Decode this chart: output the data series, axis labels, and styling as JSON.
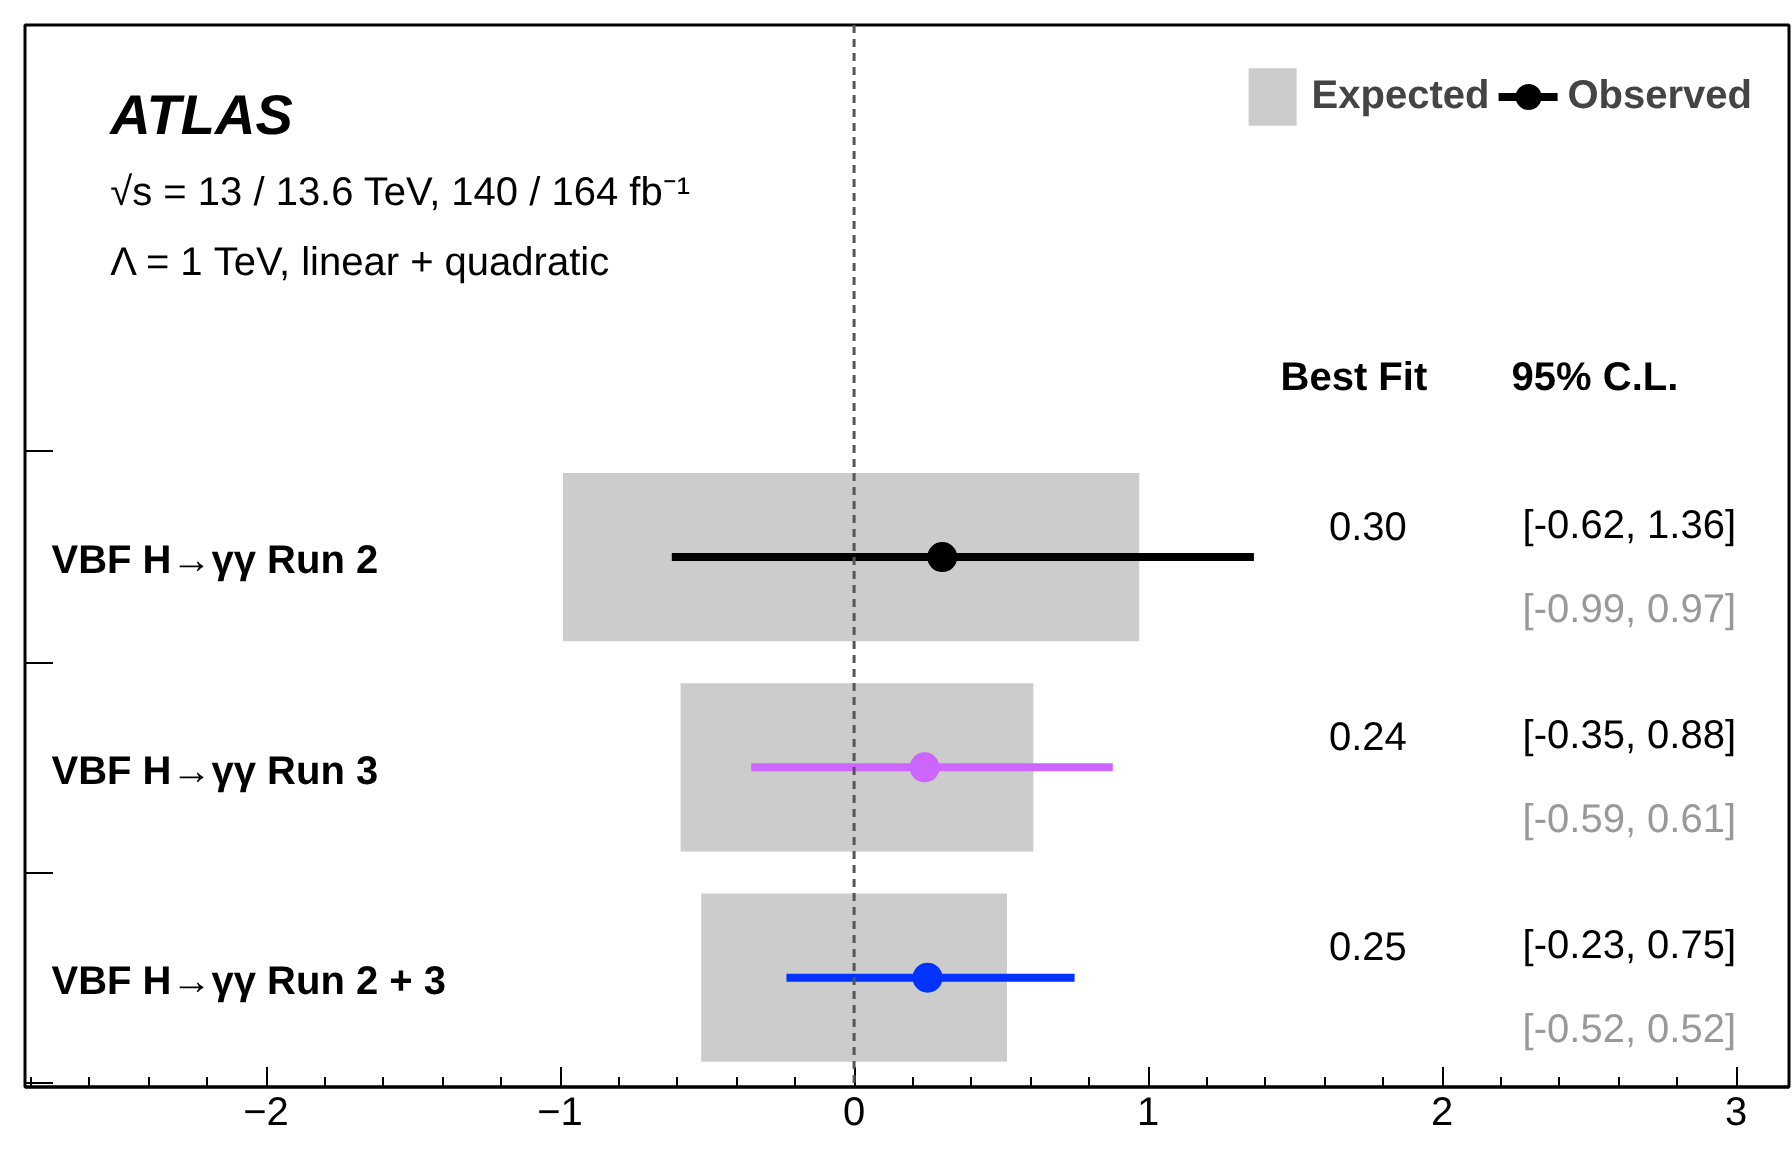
{
  "chart_data": {
    "type": "bar",
    "orientation": "horizontal",
    "categories": [
      "VBF H→γγ Run 2",
      "VBF H→γγ Run 3",
      "VBF H→γγ Run 2 + 3"
    ],
    "series": [
      {
        "name": "Expected",
        "color": "#cccccc",
        "base": [
          -0.99,
          -0.59,
          -0.52
        ],
        "values": [
          1.96,
          1.2,
          1.04
        ],
        "value_labels": [
          "[-0.99, 0.97]",
          "[-0.59, 0.61]",
          "[-0.52, 0.52]"
        ]
      },
      {
        "name": "Observed",
        "type": "scatter",
        "color": "#000000",
        "colors": [
          "#000000",
          "#cc66ff",
          "#0033ff"
        ],
        "values": [
          0.3,
          0.24,
          0.25
        ],
        "errors": [
          [
            -0.62,
            1.36
          ],
          [
            -0.35,
            0.88
          ],
          [
            -0.23,
            0.75
          ]
        ]
      }
    ],
    "xlim": [
      -2.82,
      3.18
    ],
    "xticks": [
      -2,
      -1,
      0,
      1,
      2,
      3
    ],
    "ref_lines": [
      {
        "axis": "x",
        "value": 0,
        "color": "#555555",
        "line_style": "dashed"
      }
    ],
    "annotations": [
      "ATLAS",
      "√s = 13 / 13.6 TeV, 140 / 164 fb⁻¹",
      "Λ = 1 TeV, linear + quadratic",
      "Best Fit",
      "95% C.L.",
      "0.30",
      "[-0.62, 1.36]",
      "0.24",
      "[-0.35, 0.88]",
      "0.25",
      "[-0.23, 0.75]"
    ],
    "marker": "circle",
    "grid": false,
    "legend": "top right"
  }
}
